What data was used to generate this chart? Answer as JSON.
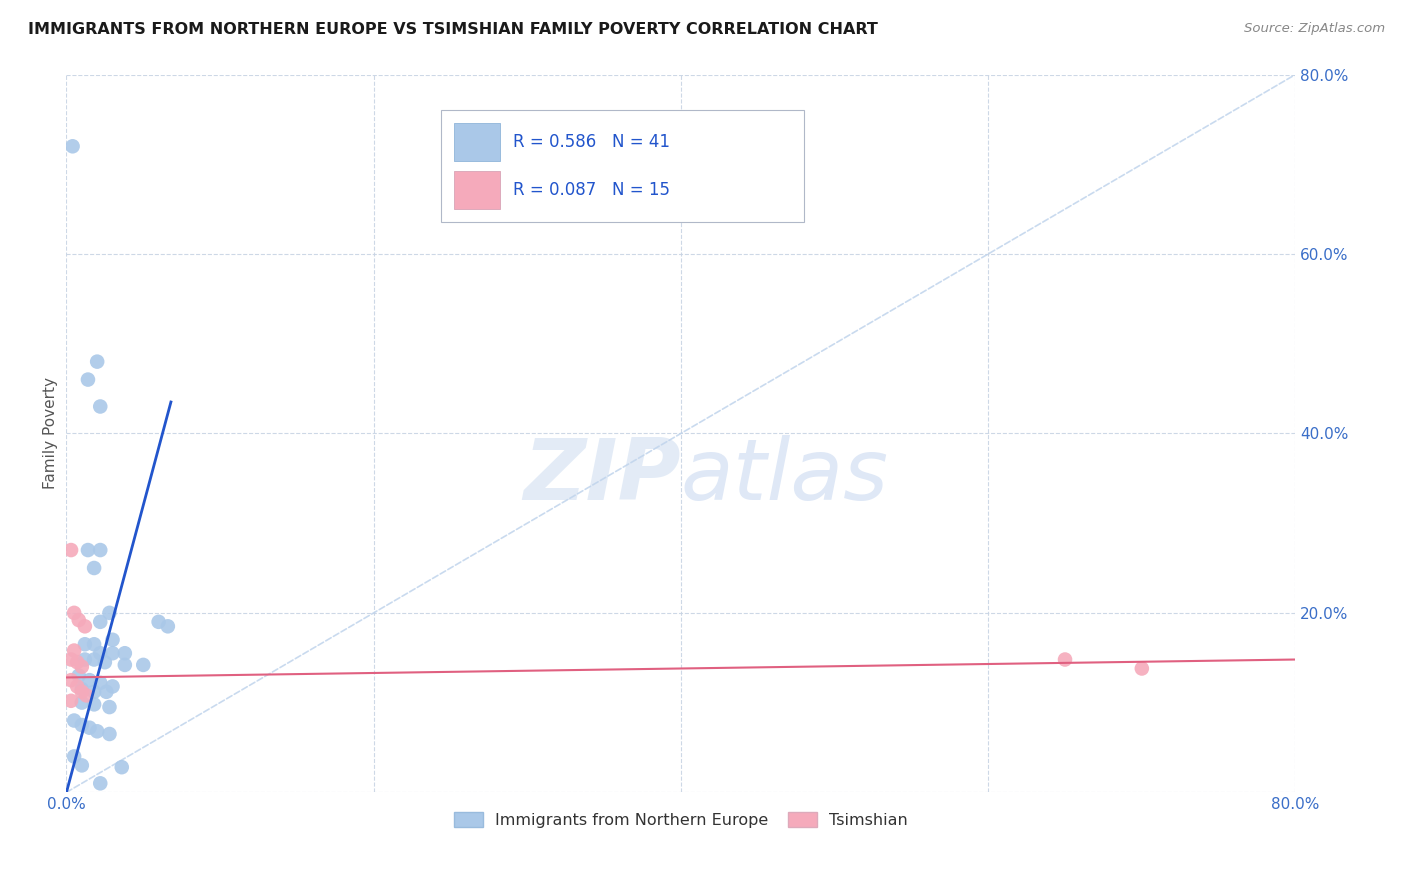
{
  "title": "IMMIGRANTS FROM NORTHERN EUROPE VS TSIMSHIAN FAMILY POVERTY CORRELATION CHART",
  "source": "Source: ZipAtlas.com",
  "ylabel": "Family Poverty",
  "xlim": [
    0.0,
    0.8
  ],
  "ylim": [
    0.0,
    0.8
  ],
  "legend1_label": "Immigrants from Northern Europe",
  "legend2_label": "Tsimshian",
  "r1": 0.586,
  "n1": 41,
  "r2": 0.087,
  "n2": 15,
  "color_blue": "#aac8e8",
  "color_pink": "#f5aabb",
  "line_blue": "#2255cc",
  "line_pink": "#e06080",
  "line_diagonal": "#c0d4ec",
  "watermark_zip": "ZIP",
  "watermark_atlas": "atlas",
  "blue_points": [
    [
      0.004,
      0.72
    ],
    [
      0.02,
      0.48
    ],
    [
      0.014,
      0.46
    ],
    [
      0.022,
      0.43
    ],
    [
      0.014,
      0.27
    ],
    [
      0.022,
      0.27
    ],
    [
      0.018,
      0.25
    ],
    [
      0.022,
      0.19
    ],
    [
      0.028,
      0.2
    ],
    [
      0.012,
      0.165
    ],
    [
      0.018,
      0.165
    ],
    [
      0.03,
      0.17
    ],
    [
      0.022,
      0.155
    ],
    [
      0.03,
      0.155
    ],
    [
      0.038,
      0.155
    ],
    [
      0.06,
      0.19
    ],
    [
      0.012,
      0.148
    ],
    [
      0.018,
      0.148
    ],
    [
      0.025,
      0.145
    ],
    [
      0.038,
      0.142
    ],
    [
      0.05,
      0.142
    ],
    [
      0.066,
      0.185
    ],
    [
      0.008,
      0.13
    ],
    [
      0.015,
      0.125
    ],
    [
      0.022,
      0.122
    ],
    [
      0.03,
      0.118
    ],
    [
      0.01,
      0.115
    ],
    [
      0.018,
      0.112
    ],
    [
      0.026,
      0.112
    ],
    [
      0.01,
      0.1
    ],
    [
      0.018,
      0.098
    ],
    [
      0.028,
      0.095
    ],
    [
      0.005,
      0.08
    ],
    [
      0.01,
      0.075
    ],
    [
      0.015,
      0.072
    ],
    [
      0.02,
      0.068
    ],
    [
      0.028,
      0.065
    ],
    [
      0.005,
      0.04
    ],
    [
      0.01,
      0.03
    ],
    [
      0.036,
      0.028
    ],
    [
      0.022,
      0.01
    ]
  ],
  "pink_points": [
    [
      0.003,
      0.27
    ],
    [
      0.005,
      0.2
    ],
    [
      0.008,
      0.192
    ],
    [
      0.012,
      0.185
    ],
    [
      0.005,
      0.158
    ],
    [
      0.003,
      0.148
    ],
    [
      0.007,
      0.145
    ],
    [
      0.01,
      0.14
    ],
    [
      0.003,
      0.125
    ],
    [
      0.007,
      0.118
    ],
    [
      0.01,
      0.112
    ],
    [
      0.013,
      0.108
    ],
    [
      0.003,
      0.102
    ],
    [
      0.65,
      0.148
    ],
    [
      0.7,
      0.138
    ]
  ],
  "blue_line_x": [
    0.0,
    0.068
  ],
  "blue_line_y": [
    0.0,
    0.435
  ],
  "pink_line_x": [
    0.0,
    0.8
  ],
  "pink_line_y": [
    0.128,
    0.148
  ]
}
